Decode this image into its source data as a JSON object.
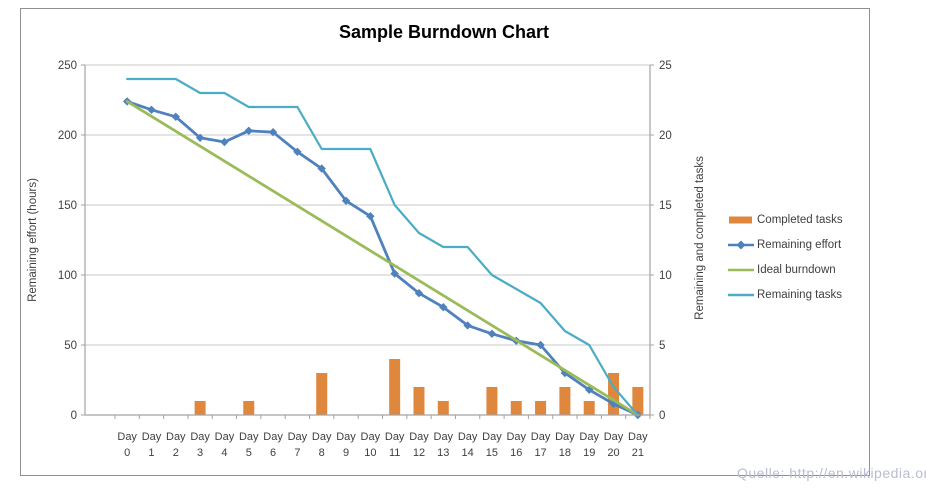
{
  "title": "Sample Burndown Chart",
  "watermark": "Quelle: http://en.wikipedia.org",
  "colors": {
    "bar_orange": "#E0873E",
    "effort_blue": "#4F81BD",
    "ideal_green": "#9BBB59",
    "tasks_teal": "#4BACC6",
    "gridline": "#c9c9c9",
    "axis_line": "#a3a3a3",
    "tick_text": "#3f3f3f",
    "title_text": "#000000",
    "watermark_text": "#b9bdd1"
  },
  "chart_data": {
    "type": "combo",
    "title": "Sample Burndown Chart",
    "grid": true,
    "legend_position": "right",
    "categories": [
      "Day 0",
      "Day 1",
      "Day 2",
      "Day 3",
      "Day 4",
      "Day 5",
      "Day 6",
      "Day 7",
      "Day 8",
      "Day 9",
      "Day 10",
      "Day 11",
      "Day 12",
      "Day 13",
      "Day 14",
      "Day 15",
      "Day 16",
      "Day 17",
      "Day 18",
      "Day 19",
      "Day 20",
      "Day 21"
    ],
    "left_axis": {
      "label": "Remaining effort (hours)",
      "min": 0,
      "max": 250,
      "step": 50
    },
    "right_axis": {
      "label": "Remaining and completed tasks",
      "min": 0,
      "max": 25,
      "step": 5
    },
    "series": [
      {
        "name": "Completed tasks",
        "type": "bar",
        "axis": "right",
        "color": "#E0873E",
        "values": [
          0,
          0,
          0,
          1,
          0,
          1,
          0,
          0,
          3,
          0,
          0,
          4,
          2,
          1,
          0,
          2,
          1,
          1,
          2,
          1,
          3,
          2
        ]
      },
      {
        "name": "Remaining effort",
        "type": "line",
        "marker": "diamond",
        "axis": "left",
        "color": "#4F81BD",
        "values": [
          224,
          218,
          213,
          198,
          195,
          203,
          202,
          188,
          176,
          153,
          142,
          101,
          87,
          77,
          64,
          58,
          53,
          50,
          30,
          18,
          8,
          0
        ]
      },
      {
        "name": "Ideal burndown",
        "type": "line",
        "axis": "left",
        "color": "#9BBB59",
        "x": [
          0,
          21
        ],
        "values": [
          224,
          0
        ]
      },
      {
        "name": "Remaining tasks",
        "type": "line",
        "axis": "right",
        "color": "#4BACC6",
        "values": [
          24,
          24,
          24,
          23,
          23,
          22,
          22,
          22,
          19,
          19,
          19,
          15,
          13,
          12,
          12,
          10,
          9,
          8,
          6,
          5,
          2,
          0
        ]
      }
    ]
  }
}
